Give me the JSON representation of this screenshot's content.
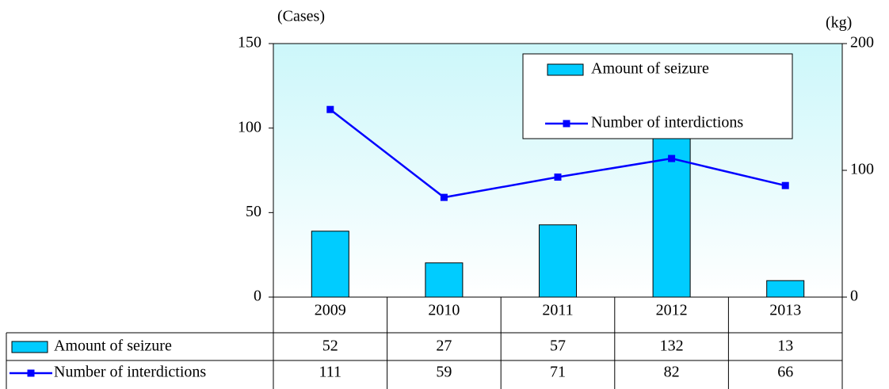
{
  "chart_data": {
    "type": "combo",
    "y_label": "(Cases)",
    "y2_label": "(kg)",
    "categories": [
      "2009",
      "2010",
      "2011",
      "2012",
      "2013"
    ],
    "series": [
      {
        "name": "Amount of seizure",
        "type": "bar",
        "axis": "y2",
        "color": "#00ccff",
        "values": [
          52,
          27,
          57,
          132,
          13
        ]
      },
      {
        "name": "Number of interdictions",
        "type": "line",
        "axis": "y",
        "color": "#0000ff",
        "values": [
          111,
          59,
          71,
          82,
          66
        ]
      }
    ],
    "ylim": [
      0,
      150
    ],
    "yticks": [
      0,
      50,
      100,
      150
    ],
    "y2lim": [
      0,
      200
    ],
    "y2ticks": [
      0,
      100,
      200
    ],
    "legend": "top-right",
    "data_table": true,
    "grid": false
  }
}
